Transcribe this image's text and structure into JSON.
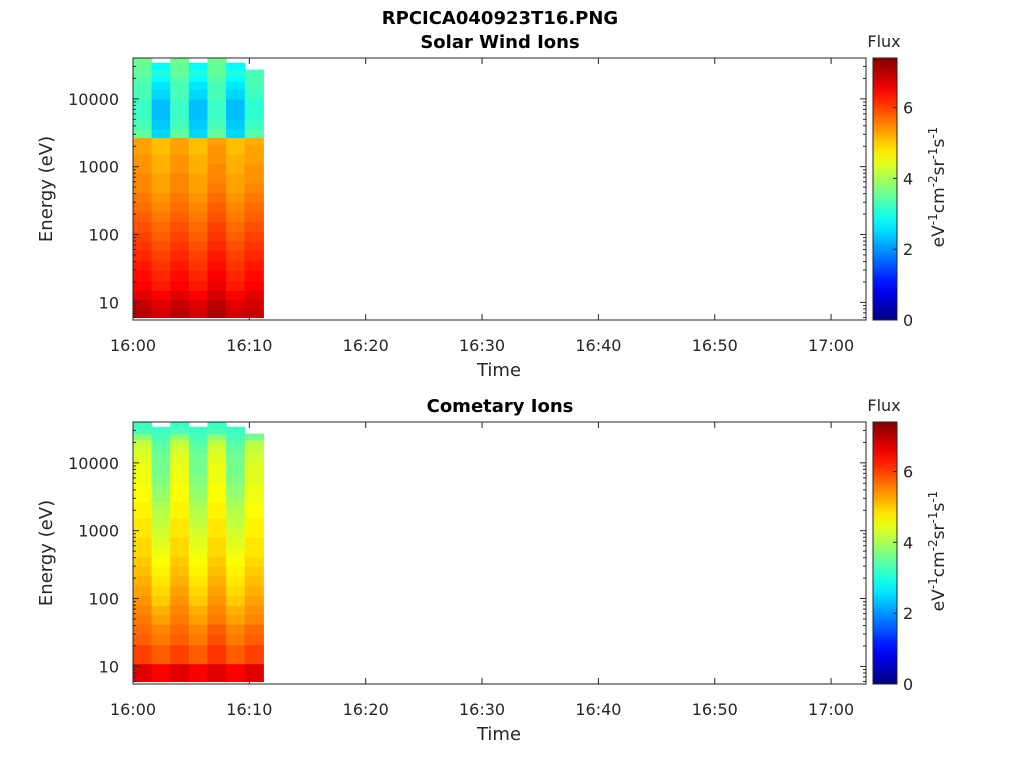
{
  "figure": {
    "title": "RPCICA040923T16.PNG"
  },
  "colors": {
    "colormap": "jet",
    "axes": "#262626",
    "background": "#ffffff"
  },
  "chart_data": [
    {
      "type": "heatmap",
      "title": "Solar Wind Ions",
      "xlabel": "Time",
      "ylabel": "Energy (eV)",
      "yscale": "log",
      "xlim": [
        "16:00",
        "17:03"
      ],
      "ylim": [
        5.5,
        40000
      ],
      "xticks": [
        "16:00",
        "16:10",
        "16:20",
        "16:30",
        "16:40",
        "16:50",
        "17:00"
      ],
      "yticks": [
        "10",
        "100",
        "1000",
        "10000"
      ],
      "grid": false,
      "colorbar": {
        "title": "Flux",
        "label": "eV-1cm-2sr-1s-1",
        "range": [
          0,
          7.4
        ],
        "ticks": [
          "0",
          "2",
          "4",
          "6"
        ]
      },
      "time_bins_start": [
        "16:00",
        "16:01.6",
        "16:03.2",
        "16:04.8",
        "16:06.4",
        "16:08.0",
        "16:09.6"
      ],
      "energy_bins_eV": [
        6,
        8,
        11,
        15,
        21,
        30,
        42,
        58,
        80,
        110,
        155,
        215,
        300,
        420,
        580,
        800,
        1100,
        1550,
        2150,
        2700,
        3600,
        5000,
        7000,
        10000,
        14000,
        18000,
        22000,
        27000,
        34000,
        40000
      ],
      "flux": [
        [
          7.0,
          6.8,
          7.0,
          6.8,
          7.1,
          6.8,
          6.9
        ],
        [
          6.9,
          6.7,
          6.9,
          6.7,
          7.0,
          6.7,
          6.8
        ],
        [
          6.7,
          6.5,
          6.7,
          6.5,
          6.8,
          6.5,
          6.7
        ],
        [
          6.5,
          6.3,
          6.5,
          6.3,
          6.6,
          6.3,
          6.5
        ],
        [
          6.4,
          6.2,
          6.4,
          6.2,
          6.5,
          6.2,
          6.4
        ],
        [
          6.3,
          6.1,
          6.3,
          6.1,
          6.4,
          6.1,
          6.3
        ],
        [
          6.2,
          6.0,
          6.2,
          6.0,
          6.3,
          6.0,
          6.2
        ],
        [
          6.1,
          5.9,
          6.1,
          5.9,
          6.2,
          5.9,
          6.1
        ],
        [
          6.0,
          5.8,
          6.0,
          5.8,
          6.1,
          5.8,
          6.0
        ],
        [
          5.9,
          5.7,
          5.9,
          5.7,
          6.0,
          5.7,
          5.9
        ],
        [
          5.8,
          5.6,
          5.8,
          5.6,
          5.9,
          5.6,
          5.8
        ],
        [
          5.7,
          5.5,
          5.7,
          5.5,
          5.8,
          5.5,
          5.7
        ],
        [
          5.6,
          5.4,
          5.6,
          5.4,
          5.7,
          5.4,
          5.6
        ],
        [
          5.5,
          5.3,
          5.5,
          5.3,
          5.6,
          5.3,
          5.5
        ],
        [
          5.5,
          5.3,
          5.5,
          5.3,
          5.5,
          5.3,
          5.4
        ],
        [
          5.4,
          5.2,
          5.4,
          5.2,
          5.5,
          5.2,
          5.4
        ],
        [
          5.4,
          5.2,
          5.4,
          5.2,
          5.4,
          5.2,
          5.3
        ],
        [
          5.3,
          5.1,
          5.3,
          5.1,
          5.4,
          5.1,
          5.3
        ],
        [
          5.3,
          5.1,
          5.3,
          5.1,
          5.3,
          5.1,
          5.2
        ],
        [
          3.5,
          2.5,
          3.5,
          2.5,
          3.5,
          2.5,
          3.4
        ],
        [
          3.3,
          2.4,
          3.3,
          2.4,
          3.3,
          2.4,
          3.2
        ],
        [
          3.2,
          2.3,
          3.2,
          2.3,
          3.2,
          2.3,
          3.1
        ],
        [
          3.2,
          2.3,
          3.2,
          2.3,
          3.2,
          2.3,
          3.1
        ],
        [
          3.3,
          2.5,
          3.3,
          2.5,
          3.3,
          2.5,
          3.2
        ],
        [
          3.3,
          2.6,
          3.3,
          2.6,
          3.3,
          2.6,
          3.3
        ],
        [
          3.4,
          2.8,
          3.4,
          2.8,
          3.4,
          2.8,
          3.3
        ],
        [
          3.5,
          3.0,
          3.5,
          3.0,
          3.5,
          3.0,
          3.3
        ],
        [
          3.5,
          2.8,
          3.5,
          2.8,
          3.5,
          2.8,
          null
        ],
        [
          3.6,
          null,
          3.6,
          null,
          3.6,
          null,
          null
        ]
      ]
    },
    {
      "type": "heatmap",
      "title": "Cometary Ions",
      "xlabel": "Time",
      "ylabel": "Energy (eV)",
      "yscale": "log",
      "xlim": [
        "16:00",
        "17:03"
      ],
      "ylim": [
        5.5,
        40000
      ],
      "xticks": [
        "16:00",
        "16:10",
        "16:20",
        "16:30",
        "16:40",
        "16:50",
        "17:00"
      ],
      "yticks": [
        "10",
        "100",
        "1000",
        "10000"
      ],
      "grid": false,
      "colorbar": {
        "title": "Flux",
        "label": "eV-1cm-2sr-1s-1",
        "range": [
          0,
          7.4
        ],
        "ticks": [
          "0",
          "2",
          "4",
          "6"
        ]
      },
      "time_bins_start": [
        "16:00",
        "16:01.6",
        "16:03.2",
        "16:04.8",
        "16:06.4",
        "16:08.0",
        "16:09.6"
      ],
      "energy_bins_eV": [
        6,
        8,
        11,
        15,
        21,
        30,
        42,
        58,
        80,
        110,
        155,
        215,
        300,
        420,
        580,
        800,
        1100,
        1550,
        2150,
        2700,
        3600,
        5000,
        7000,
        10000,
        14000,
        18000,
        22000,
        27000,
        34000,
        40000
      ],
      "flux": [
        [
          6.7,
          6.5,
          6.7,
          6.5,
          6.7,
          6.5,
          6.7
        ],
        [
          6.7,
          6.5,
          6.7,
          6.5,
          6.7,
          6.5,
          6.7
        ],
        [
          6.0,
          5.8,
          6.0,
          5.8,
          6.1,
          5.8,
          6.0
        ],
        [
          6.0,
          5.8,
          6.0,
          5.8,
          6.1,
          5.8,
          6.0
        ],
        [
          5.8,
          5.6,
          5.8,
          5.6,
          5.9,
          5.6,
          5.8
        ],
        [
          5.7,
          5.5,
          5.7,
          5.5,
          5.8,
          5.5,
          5.7
        ],
        [
          5.6,
          5.3,
          5.6,
          5.3,
          5.6,
          5.3,
          5.5
        ],
        [
          5.5,
          5.2,
          5.5,
          5.2,
          5.5,
          5.2,
          5.4
        ],
        [
          5.4,
          5.0,
          5.4,
          5.0,
          5.4,
          5.0,
          5.3
        ],
        [
          5.3,
          4.9,
          5.3,
          4.9,
          5.3,
          4.9,
          5.2
        ],
        [
          5.2,
          4.8,
          5.2,
          4.8,
          5.2,
          4.8,
          5.1
        ],
        [
          5.1,
          4.7,
          5.1,
          4.7,
          5.1,
          4.7,
          5.0
        ],
        [
          5.0,
          4.6,
          5.0,
          4.6,
          5.0,
          4.6,
          4.9
        ],
        [
          4.9,
          4.5,
          4.9,
          4.5,
          4.9,
          4.5,
          4.8
        ],
        [
          4.9,
          4.4,
          4.9,
          4.4,
          4.9,
          4.4,
          4.8
        ],
        [
          4.8,
          4.3,
          4.8,
          4.3,
          4.8,
          4.3,
          4.7
        ],
        [
          4.8,
          4.2,
          4.8,
          4.2,
          4.8,
          4.2,
          4.7
        ],
        [
          4.7,
          4.1,
          4.7,
          4.1,
          4.7,
          4.1,
          4.6
        ],
        [
          4.7,
          4.0,
          4.7,
          4.0,
          4.7,
          4.0,
          4.6
        ],
        [
          4.6,
          3.9,
          4.6,
          3.9,
          4.6,
          3.9,
          4.5
        ],
        [
          4.6,
          3.8,
          4.6,
          3.8,
          4.6,
          3.8,
          4.5
        ],
        [
          4.5,
          3.7,
          4.5,
          3.7,
          4.5,
          3.7,
          4.4
        ],
        [
          4.5,
          3.6,
          4.5,
          3.6,
          4.5,
          3.6,
          4.4
        ],
        [
          4.4,
          3.6,
          4.4,
          3.6,
          4.4,
          3.6,
          4.3
        ],
        [
          4.3,
          3.5,
          4.3,
          3.5,
          4.3,
          3.5,
          4.2
        ],
        [
          4.2,
          3.4,
          4.2,
          3.4,
          4.2,
          3.4,
          4.1
        ],
        [
          3.8,
          3.3,
          3.8,
          3.3,
          3.8,
          3.3,
          3.6
        ],
        [
          3.3,
          3.2,
          3.3,
          3.2,
          3.3,
          3.2,
          null
        ],
        [
          3.2,
          null,
          3.2,
          null,
          3.2,
          null,
          null
        ]
      ]
    }
  ]
}
